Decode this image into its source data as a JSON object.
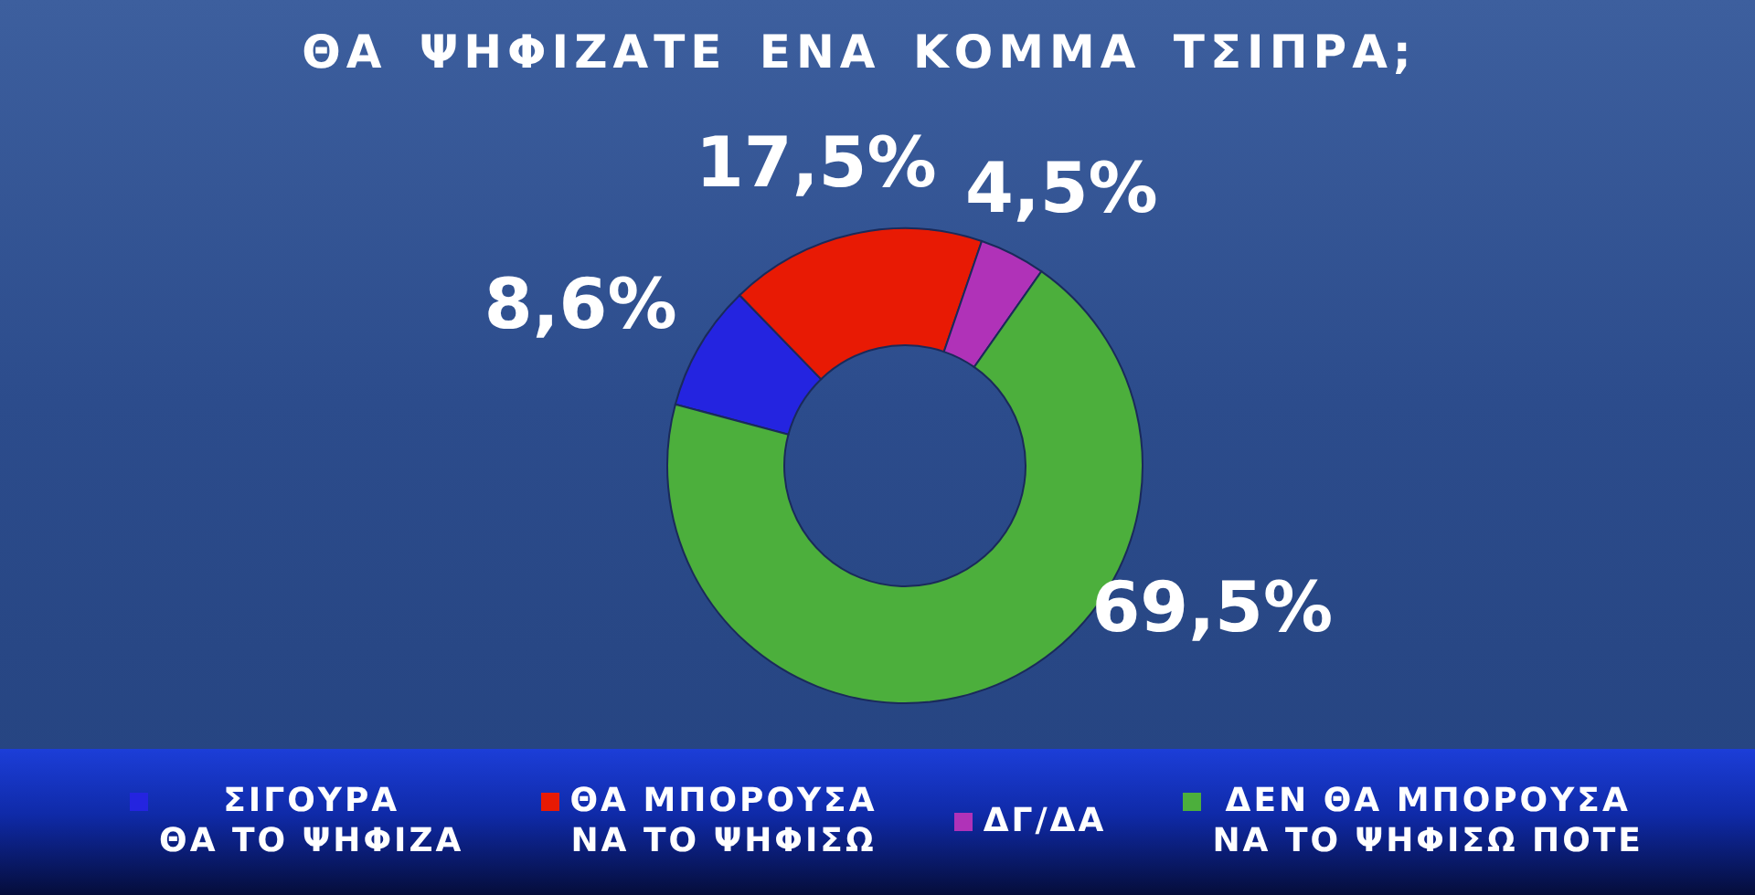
{
  "chart_data": {
    "type": "donut",
    "title": "ΘΑ ΨΗΦΙΖΑΤΕ ΕΝΑ ΚΟΜΜΑ ΤΣΙΠΡΑ;",
    "categories": [
      "ΣΙΓΟΥΡΑ\nΘΑ ΤΟ ΨΗΦΙΖΑ",
      "ΘΑ ΜΠΟΡΟΥΣΑ\nΝΑ ΤΟ ΨΗΦΙΣΩ",
      "ΔΓ/ΔΑ",
      "ΔΕΝ ΘΑ ΜΠΟΡΟΥΣΑ\nΝΑ ΤΟ ΨΗΦΙΣΩ ΠΟΤΕ"
    ],
    "values": [
      8.6,
      17.5,
      4.5,
      69.5
    ],
    "colors": [
      "#2424e0",
      "#e81a04",
      "#b032b8",
      "#4caf3c"
    ],
    "value_labels": [
      "8,6%",
      "17,5%",
      "4,5%",
      "69,5%"
    ],
    "legend": "bottom"
  }
}
